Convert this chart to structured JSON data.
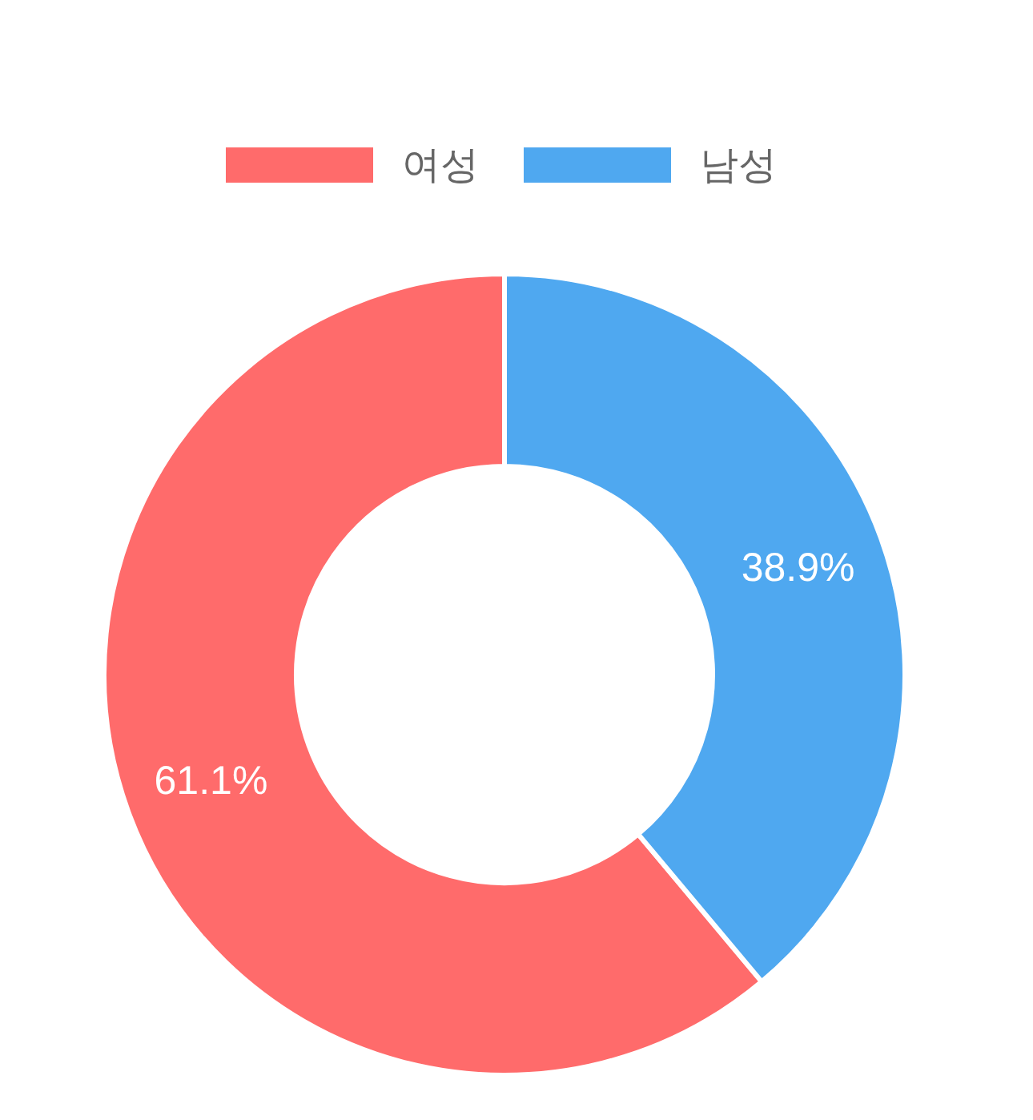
{
  "chart_data": {
    "type": "donut",
    "categories": [
      "여성",
      "남성"
    ],
    "values": [
      61.1,
      38.9
    ],
    "colors": [
      "#ff6b6b",
      "#4fa8f0"
    ],
    "value_labels": [
      "61.1%",
      "38.9%"
    ],
    "legend": "top"
  }
}
